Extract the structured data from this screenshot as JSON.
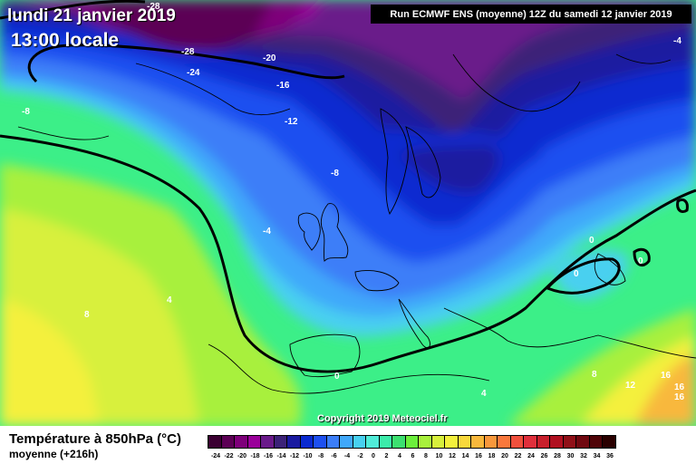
{
  "header": {
    "date": "lundi 21 janvier 2019",
    "time": "13:00 locale",
    "run_info": "Run ECMWF ENS (moyenne) 12Z du samedi 12 janvier 2019"
  },
  "footer": {
    "title": "Température à 850hPa (°C)",
    "subtitle": "moyenne  (+216h)",
    "copyright": "Copyright 2019 Meteociel.fr"
  },
  "legend": {
    "values": [
      "-24",
      "-22",
      "-20",
      "-18",
      "-16",
      "-14",
      "-12",
      "-10",
      "-8",
      "-6",
      "-4",
      "-2",
      "0",
      "2",
      "4",
      "6",
      "8",
      "10",
      "12",
      "14",
      "16",
      "18",
      "20",
      "22",
      "24",
      "26",
      "28",
      "30",
      "32",
      "34",
      "36"
    ],
    "colors": [
      "#3b0032",
      "#5c0055",
      "#7e007a",
      "#9a009a",
      "#6a1a8a",
      "#3c2278",
      "#1a1aa0",
      "#0a2ad0",
      "#1e50f0",
      "#3c7ef8",
      "#40a8fa",
      "#48d0f0",
      "#50ecd8",
      "#3cecaa",
      "#3ce070",
      "#6cef3c",
      "#a8f03c",
      "#d8f03c",
      "#f4f03c",
      "#f8d83c",
      "#f8b83c",
      "#f8983c",
      "#f8783c",
      "#f0503c",
      "#e0303c",
      "#c8202c",
      "#b01020",
      "#901018",
      "#700810",
      "#500408",
      "#2a0000"
    ]
  },
  "map_labels": [
    {
      "text": "-28"
    },
    {
      "text": "-28"
    },
    {
      "text": "-24"
    },
    {
      "text": "-20"
    },
    {
      "text": "-16"
    },
    {
      "text": "-12"
    },
    {
      "text": "-8"
    },
    {
      "text": "-8"
    },
    {
      "text": "-4"
    },
    {
      "text": "-4"
    },
    {
      "text": "0"
    },
    {
      "text": "0"
    },
    {
      "text": "0"
    },
    {
      "text": "0"
    },
    {
      "text": "4"
    },
    {
      "text": "4"
    },
    {
      "text": "8"
    },
    {
      "text": "8"
    },
    {
      "text": "12"
    },
    {
      "text": "16"
    },
    {
      "text": "16"
    },
    {
      "text": "16"
    }
  ]
}
